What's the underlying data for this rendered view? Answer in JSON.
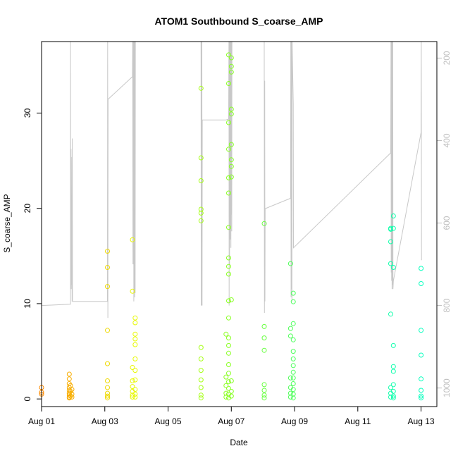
{
  "chart_data": {
    "type": "scatter",
    "title": "ATOM1 Southbound S_coarse_AMP",
    "xlabel": "Date",
    "ylabel": "S_coarse_AMP",
    "x_ticks": [
      "Aug 01",
      "Aug 03",
      "Aug 05",
      "Aug 07",
      "Aug 09",
      "Aug 11",
      "Aug 13"
    ],
    "xlim": [
      "2021-08-01 00:00",
      "2021-08-13 12:00"
    ],
    "y_ticks": [
      0,
      10,
      20,
      30
    ],
    "ylim": [
      -0.8,
      37.5
    ],
    "y2_ticks": [
      200,
      400,
      600,
      800,
      1000
    ],
    "y2lim": [
      1045,
      160
    ],
    "y2_color": "#bfbfbf",
    "grid": false,
    "point_color_scale": [
      "#ff8c00",
      "#e6ff00",
      "#7dff24",
      "#24ff8a",
      "#00ffc8"
    ],
    "series": [
      {
        "marker": "open-circle",
        "points": [
          [
            "2021-08-01 00:00",
            1.2
          ],
          [
            "2021-08-01 00:00",
            0.7
          ],
          [
            "2021-08-01 00:00",
            0.5
          ],
          [
            "2021-08-01 21:00",
            2.6
          ],
          [
            "2021-08-01 21:00",
            2.1
          ],
          [
            "2021-08-01 21:00",
            1.6
          ],
          [
            "2021-08-01 21:00",
            1.2
          ],
          [
            "2021-08-01 21:00",
            0.9
          ],
          [
            "2021-08-01 21:00",
            0.6
          ],
          [
            "2021-08-01 21:00",
            0.4
          ],
          [
            "2021-08-01 21:00",
            0.2
          ],
          [
            "2021-08-01 21:00",
            0.1
          ],
          [
            "2021-08-01 22:00",
            1.4
          ],
          [
            "2021-08-01 22:00",
            0.8
          ],
          [
            "2021-08-01 22:00",
            0.3
          ],
          [
            "2021-08-01 23:00",
            1.0
          ],
          [
            "2021-08-01 23:00",
            0.5
          ],
          [
            "2021-08-01 23:00",
            0.2
          ],
          [
            "2021-08-03 02:00",
            15.5
          ],
          [
            "2021-08-03 02:00",
            13.8
          ],
          [
            "2021-08-03 02:00",
            11.8
          ],
          [
            "2021-08-03 02:00",
            7.2
          ],
          [
            "2021-08-03 02:00",
            3.7
          ],
          [
            "2021-08-03 02:00",
            1.9
          ],
          [
            "2021-08-03 02:00",
            1.2
          ],
          [
            "2021-08-03 02:00",
            0.6
          ],
          [
            "2021-08-03 02:00",
            0.3
          ],
          [
            "2021-08-03 02:00",
            0.1
          ],
          [
            "2021-08-03 21:00",
            16.7
          ],
          [
            "2021-08-03 21:00",
            11.3
          ],
          [
            "2021-08-03 21:00",
            3.3
          ],
          [
            "2021-08-03 21:00",
            1.9
          ],
          [
            "2021-08-03 21:00",
            1.3
          ],
          [
            "2021-08-03 21:00",
            0.8
          ],
          [
            "2021-08-03 21:00",
            0.4
          ],
          [
            "2021-08-03 21:00",
            0.2
          ],
          [
            "2021-08-03 23:00",
            8.5
          ],
          [
            "2021-08-03 23:00",
            8.0
          ],
          [
            "2021-08-03 23:00",
            6.8
          ],
          [
            "2021-08-03 23:00",
            6.3
          ],
          [
            "2021-08-03 23:00",
            5.7
          ],
          [
            "2021-08-03 23:00",
            4.2
          ],
          [
            "2021-08-03 23:00",
            3.0
          ],
          [
            "2021-08-03 23:00",
            2.0
          ],
          [
            "2021-08-03 23:00",
            1.0
          ],
          [
            "2021-08-03 23:00",
            0.5
          ],
          [
            "2021-08-03 23:00",
            0.2
          ],
          [
            "2021-08-06 01:00",
            32.6
          ],
          [
            "2021-08-06 01:00",
            25.3
          ],
          [
            "2021-08-06 01:00",
            22.9
          ],
          [
            "2021-08-06 01:00",
            19.9
          ],
          [
            "2021-08-06 01:00",
            19.5
          ],
          [
            "2021-08-06 01:00",
            18.7
          ],
          [
            "2021-08-06 01:00",
            5.4
          ],
          [
            "2021-08-06 01:00",
            4.2
          ],
          [
            "2021-08-06 01:00",
            3.0
          ],
          [
            "2021-08-06 01:00",
            2.0
          ],
          [
            "2021-08-06 01:00",
            1.2
          ],
          [
            "2021-08-06 01:00",
            0.4
          ],
          [
            "2021-08-06 01:00",
            0.1
          ],
          [
            "2021-08-06 20:00",
            6.8
          ],
          [
            "2021-08-06 20:00",
            2.3
          ],
          [
            "2021-08-06 20:00",
            1.4
          ],
          [
            "2021-08-06 20:00",
            0.6
          ],
          [
            "2021-08-06 20:00",
            0.2
          ],
          [
            "2021-08-06 22:00",
            36.1
          ],
          [
            "2021-08-06 22:00",
            33.1
          ],
          [
            "2021-08-06 22:00",
            29.0
          ],
          [
            "2021-08-06 22:00",
            26.2
          ],
          [
            "2021-08-06 22:00",
            23.2
          ],
          [
            "2021-08-06 22:00",
            21.6
          ],
          [
            "2021-08-06 22:00",
            18.0
          ],
          [
            "2021-08-06 22:00",
            14.8
          ],
          [
            "2021-08-06 22:00",
            13.9
          ],
          [
            "2021-08-06 22:00",
            13.1
          ],
          [
            "2021-08-06 22:00",
            10.3
          ],
          [
            "2021-08-06 22:00",
            8.5
          ],
          [
            "2021-08-06 22:00",
            6.4
          ],
          [
            "2021-08-06 22:00",
            5.6
          ],
          [
            "2021-08-06 22:00",
            4.8
          ],
          [
            "2021-08-06 22:00",
            3.6
          ],
          [
            "2021-08-06 22:00",
            2.7
          ],
          [
            "2021-08-06 22:00",
            1.8
          ],
          [
            "2021-08-06 22:00",
            1.1
          ],
          [
            "2021-08-06 22:00",
            0.5
          ],
          [
            "2021-08-06 22:00",
            0.1
          ],
          [
            "2021-08-07 00:00",
            35.8
          ],
          [
            "2021-08-07 00:00",
            34.9
          ],
          [
            "2021-08-07 00:00",
            34.3
          ],
          [
            "2021-08-07 00:00",
            30.4
          ],
          [
            "2021-08-07 00:00",
            29.9
          ],
          [
            "2021-08-07 00:00",
            26.7
          ],
          [
            "2021-08-07 00:00",
            25.1
          ],
          [
            "2021-08-07 00:00",
            24.4
          ],
          [
            "2021-08-07 00:00",
            23.3
          ],
          [
            "2021-08-07 00:00",
            10.4
          ],
          [
            "2021-08-07 00:00",
            1.9
          ],
          [
            "2021-08-07 00:00",
            0.8
          ],
          [
            "2021-08-07 00:00",
            0.3
          ],
          [
            "2021-08-08 01:00",
            18.4
          ],
          [
            "2021-08-08 01:00",
            7.6
          ],
          [
            "2021-08-08 01:00",
            6.4
          ],
          [
            "2021-08-08 01:00",
            5.1
          ],
          [
            "2021-08-08 01:00",
            1.5
          ],
          [
            "2021-08-08 01:00",
            0.9
          ],
          [
            "2021-08-08 01:00",
            0.4
          ],
          [
            "2021-08-08 01:00",
            0.1
          ],
          [
            "2021-08-08 21:00",
            14.2
          ],
          [
            "2021-08-08 21:00",
            7.4
          ],
          [
            "2021-08-08 21:00",
            6.6
          ],
          [
            "2021-08-08 21:00",
            2.2
          ],
          [
            "2021-08-08 21:00",
            1.2
          ],
          [
            "2021-08-08 21:00",
            0.6
          ],
          [
            "2021-08-08 21:00",
            0.2
          ],
          [
            "2021-08-08 23:00",
            11.1
          ],
          [
            "2021-08-08 23:00",
            10.2
          ],
          [
            "2021-08-08 23:00",
            7.9
          ],
          [
            "2021-08-08 23:00",
            6.2
          ],
          [
            "2021-08-08 23:00",
            5.0
          ],
          [
            "2021-08-08 23:00",
            4.2
          ],
          [
            "2021-08-08 23:00",
            3.5
          ],
          [
            "2021-08-08 23:00",
            2.8
          ],
          [
            "2021-08-08 23:00",
            2.2
          ],
          [
            "2021-08-08 23:00",
            1.6
          ],
          [
            "2021-08-08 23:00",
            1.0
          ],
          [
            "2021-08-08 23:00",
            0.5
          ],
          [
            "2021-08-08 23:00",
            0.1
          ],
          [
            "2021-08-12 01:00",
            17.9
          ],
          [
            "2021-08-12 01:00",
            17.8
          ],
          [
            "2021-08-12 01:00",
            16.5
          ],
          [
            "2021-08-12 01:00",
            14.2
          ],
          [
            "2021-08-12 01:00",
            8.9
          ],
          [
            "2021-08-12 01:00",
            1.2
          ],
          [
            "2021-08-12 01:00",
            0.6
          ],
          [
            "2021-08-12 01:00",
            0.2
          ],
          [
            "2021-08-12 03:00",
            19.2
          ],
          [
            "2021-08-12 03:00",
            17.9
          ],
          [
            "2021-08-12 03:00",
            13.8
          ],
          [
            "2021-08-12 03:00",
            5.6
          ],
          [
            "2021-08-12 03:00",
            3.4
          ],
          [
            "2021-08-12 03:00",
            2.9
          ],
          [
            "2021-08-12 03:00",
            1.5
          ],
          [
            "2021-08-12 03:00",
            0.8
          ],
          [
            "2021-08-12 03:00",
            0.3
          ],
          [
            "2021-08-12 03:00",
            0.1
          ],
          [
            "2021-08-13 00:00",
            13.7
          ],
          [
            "2021-08-13 00:00",
            12.1
          ],
          [
            "2021-08-13 00:00",
            7.2
          ],
          [
            "2021-08-13 00:00",
            4.6
          ],
          [
            "2021-08-13 00:00",
            2.1
          ],
          [
            "2021-08-13 00:00",
            0.9
          ],
          [
            "2021-08-13 00:00",
            0.3
          ],
          [
            "2021-08-13 00:00",
            0.1
          ]
        ]
      },
      {
        "axis": "right",
        "color": "#c8c8c8",
        "type": "line",
        "points": [
          [
            "2021-08-01 00:00",
            800
          ],
          [
            "2021-08-01 22:00",
            797
          ],
          [
            "2021-08-01 22:00",
            160
          ],
          [
            "2021-08-01 22:10",
            760
          ],
          [
            "2021-08-01 22:20",
            420
          ],
          [
            "2021-08-01 22:30",
            760
          ],
          [
            "2021-08-01 22:40",
            580
          ],
          [
            "2021-08-01 22:50",
            750
          ],
          [
            "2021-08-01 23:00",
            440
          ],
          [
            "2021-08-01 23:10",
            790
          ],
          [
            "2021-08-01 23:20",
            395
          ],
          [
            "2021-08-01 23:30",
            790
          ],
          [
            "2021-08-03 02:00",
            790
          ],
          [
            "2021-08-03 02:10",
            160
          ],
          [
            "2021-08-03 02:20",
            830
          ],
          [
            "2021-08-03 02:30",
            300
          ],
          [
            "2021-08-03 21:00",
            245
          ],
          [
            "2021-08-03 21:10",
            160
          ],
          [
            "2021-08-03 21:20",
            700
          ],
          [
            "2021-08-03 21:30",
            160
          ],
          [
            "2021-08-03 21:40",
            700
          ],
          [
            "2021-08-03 21:50",
            160
          ],
          [
            "2021-08-03 22:00",
            790
          ],
          [
            "2021-08-03 22:10",
            160
          ],
          [
            "2021-08-03 22:20",
            770
          ],
          [
            "2021-08-03 22:30",
            160
          ],
          [
            "2021-08-03 22:40",
            780
          ],
          [
            "2021-08-03 22:50",
            160
          ],
          [
            "2021-08-03 23:00",
            770
          ],
          [
            "2021-08-03 23:10",
            160
          ],
          [
            "2021-08-05 08:00",
            160
          ],
          [
            "2021-08-06 01:00",
            160
          ],
          [
            "2021-08-06 01:10",
            800
          ],
          [
            "2021-08-06 01:20",
            160
          ],
          [
            "2021-08-06 01:30",
            800
          ],
          [
            "2021-08-06 01:40",
            160
          ],
          [
            "2021-08-06 01:50",
            800
          ],
          [
            "2021-08-06 02:00",
            350
          ],
          [
            "2021-08-06 20:00",
            350
          ],
          [
            "2021-08-06 22:00",
            348
          ],
          [
            "2021-08-06 22:10",
            160
          ],
          [
            "2021-08-06 22:20",
            800
          ],
          [
            "2021-08-06 22:30",
            160
          ],
          [
            "2021-08-06 22:40",
            700
          ],
          [
            "2021-08-06 22:50",
            160
          ],
          [
            "2021-08-06 23:00",
            620
          ],
          [
            "2021-08-06 23:10",
            160
          ],
          [
            "2021-08-06 23:20",
            640
          ],
          [
            "2021-08-06 23:30",
            160
          ],
          [
            "2021-08-06 23:40",
            660
          ],
          [
            "2021-08-06 23:50",
            160
          ],
          [
            "2021-08-07 00:00",
            580
          ],
          [
            "2021-08-07 00:10",
            160
          ],
          [
            "2021-08-07 00:20",
            620
          ],
          [
            "2021-08-07 00:30",
            160
          ],
          [
            "2021-08-08 01:00",
            160
          ],
          [
            "2021-08-08 01:10",
            818
          ],
          [
            "2021-08-08 01:20",
            255
          ],
          [
            "2021-08-08 01:30",
            790
          ],
          [
            "2021-08-08 01:40",
            565
          ],
          [
            "2021-08-08 21:00",
            540
          ],
          [
            "2021-08-08 21:10",
            160
          ],
          [
            "2021-08-08 21:20",
            780
          ],
          [
            "2021-08-08 21:30",
            160
          ],
          [
            "2021-08-08 21:40",
            760
          ],
          [
            "2021-08-08 21:50",
            160
          ],
          [
            "2021-08-08 22:00",
            790
          ],
          [
            "2021-08-08 22:10",
            160
          ],
          [
            "2021-08-08 23:00",
            310
          ],
          [
            "2021-08-08 23:10",
            660
          ],
          [
            "2021-08-12 01:00",
            430
          ],
          [
            "2021-08-12 01:10",
            160
          ],
          [
            "2021-08-12 01:20",
            720
          ],
          [
            "2021-08-12 01:30",
            160
          ],
          [
            "2021-08-12 01:40",
            740
          ],
          [
            "2021-08-12 01:50",
            160
          ],
          [
            "2021-08-12 02:00",
            760
          ],
          [
            "2021-08-12 02:10",
            160
          ],
          [
            "2021-08-12 02:20",
            750
          ],
          [
            "2021-08-12 02:30",
            160
          ],
          [
            "2021-08-12 02:40",
            760
          ],
          [
            "2021-08-12 03:00",
            740
          ],
          [
            "2021-08-13 00:00",
            380
          ],
          [
            "2021-08-13 00:10",
            160
          ],
          [
            "2021-08-13 00:20",
            690
          ]
        ]
      }
    ]
  }
}
